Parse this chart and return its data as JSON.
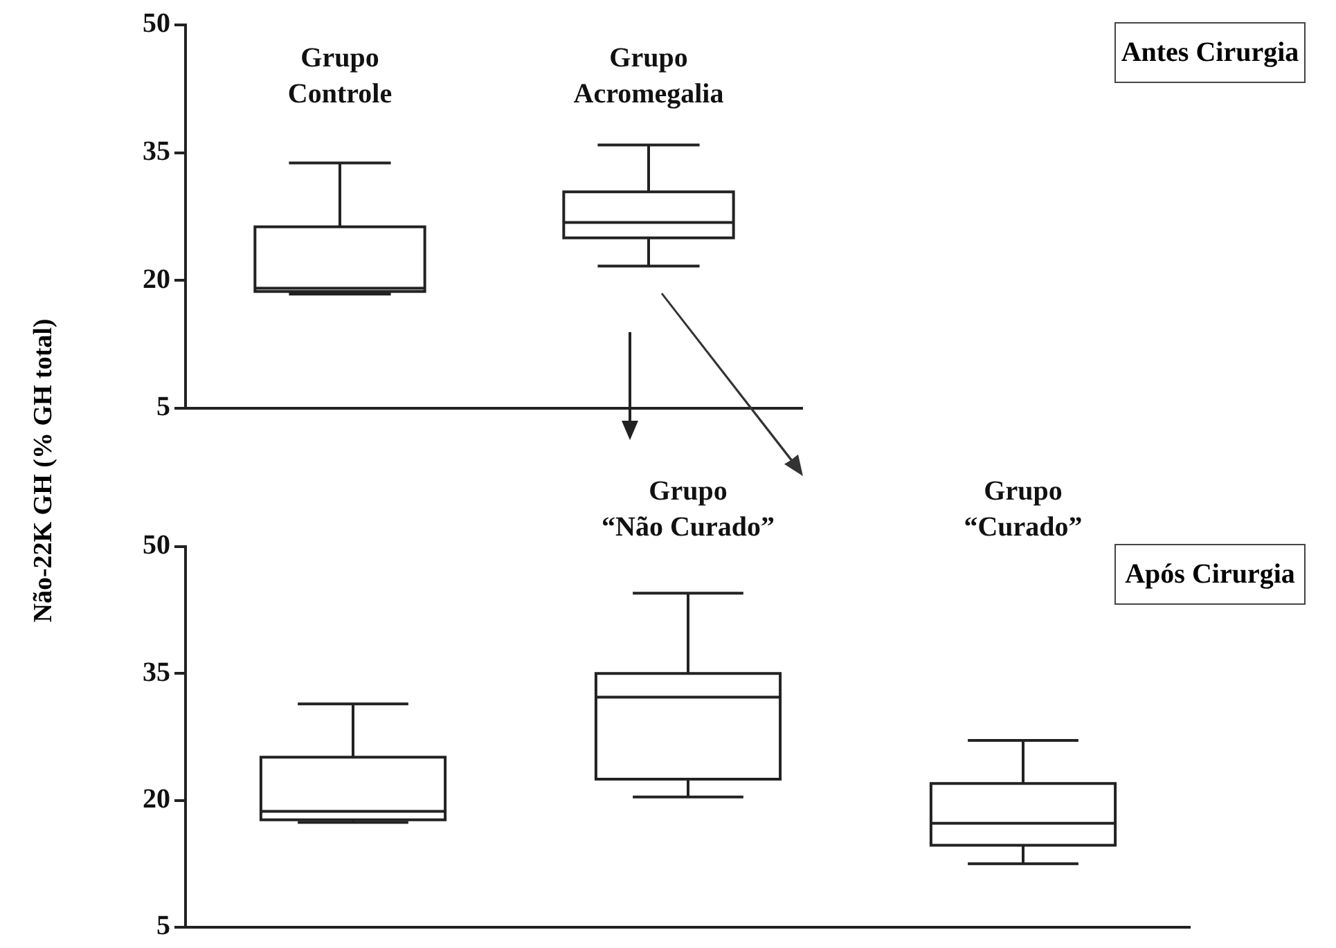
{
  "chart_data": [
    {
      "type": "box",
      "ylabel": "Não-22K GH (% GH total)",
      "categories": [
        "Grupo Controle",
        "Grupo Acromegalia"
      ],
      "boxes": [
        {
          "low": 18.4,
          "q1": 18.7,
          "median": 19.1,
          "q3": 26.3,
          "high": 33.8
        },
        {
          "low": 21.7,
          "q1": 25.0,
          "median": 26.8,
          "q3": 30.4,
          "high": 35.9
        }
      ],
      "ylim": [
        5,
        50
      ],
      "yticks": [
        5,
        20,
        35,
        50
      ],
      "grid": false,
      "legend": false,
      "annotations": [
        "Antes Cirurgia"
      ]
    },
    {
      "type": "box",
      "categories": [
        null,
        "Grupo “Não Curado”",
        "Grupo “Curado”"
      ],
      "boxes": [
        {
          "low": 17.4,
          "q1": 17.7,
          "median": 18.7,
          "q3": 25.1,
          "high": 31.4
        },
        {
          "low": 20.4,
          "q1": 22.5,
          "median": 32.2,
          "q3": 35.0,
          "high": 44.5
        },
        {
          "low": 12.5,
          "q1": 14.7,
          "median": 17.3,
          "q3": 22.0,
          "high": 27.1
        }
      ],
      "ylim": [
        5,
        50
      ],
      "yticks": [
        5,
        20,
        35,
        50
      ],
      "grid": false,
      "legend": false,
      "annotations": [
        "Após Cirurgia"
      ]
    }
  ]
}
